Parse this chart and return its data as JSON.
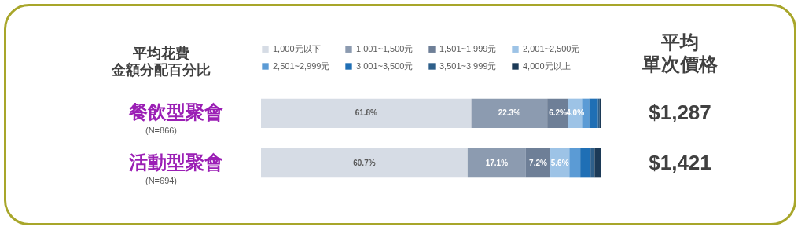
{
  "chart_data": {
    "type": "bar",
    "orientation": "horizontal",
    "stacked": true,
    "title": "平均花費金額分配百分比",
    "y2label": "平均單次價格",
    "categories": [
      "餐飲型聚會",
      "活動型聚會"
    ],
    "xlim": [
      0,
      100
    ],
    "tick_labels": "y",
    "legend": "top",
    "series": [
      {
        "name": "1,000元以下",
        "color": "#d6dce5",
        "values": [
          61.8,
          60.7
        ],
        "value_labels": [
          "61.8%",
          "60.7%"
        ]
      },
      {
        "name": "1,001~1,500元",
        "color": "#8c9bb0",
        "values": [
          22.3,
          17.1
        ],
        "value_labels": [
          "22.3%",
          "17.1%"
        ]
      },
      {
        "name": "1,501~1,999元",
        "color": "#6e7f97",
        "values": [
          6.2,
          7.2
        ],
        "value_labels": [
          "6.2%",
          "7.2%"
        ]
      },
      {
        "name": "2,001~2,500元",
        "color": "#9dc3e6",
        "values": [
          4.0,
          5.6
        ],
        "value_labels": [
          "4.0%",
          "5.6%"
        ]
      },
      {
        "name": "2,501~2,999元",
        "color": "#5b9bd5",
        "values": [
          2.1,
          3.2
        ],
        "value_labels": [
          null,
          null
        ]
      },
      {
        "name": "3,001~3,500元",
        "color": "#1f6fb5",
        "values": [
          2.6,
          3.0
        ],
        "value_labels": [
          null,
          null
        ]
      },
      {
        "name": "3,501~3,999元",
        "color": "#2e5f8a",
        "values": [
          0.5,
          1.2
        ],
        "value_labels": [
          null,
          null
        ]
      },
      {
        "name": "4,000元以上",
        "color": "#1c3a57",
        "values": [
          0.5,
          2.0
        ],
        "value_labels": [
          null,
          null
        ]
      }
    ],
    "annotations": [
      "(N=866)",
      "(N=694)",
      "$1,287",
      "$1,421"
    ]
  }
}
